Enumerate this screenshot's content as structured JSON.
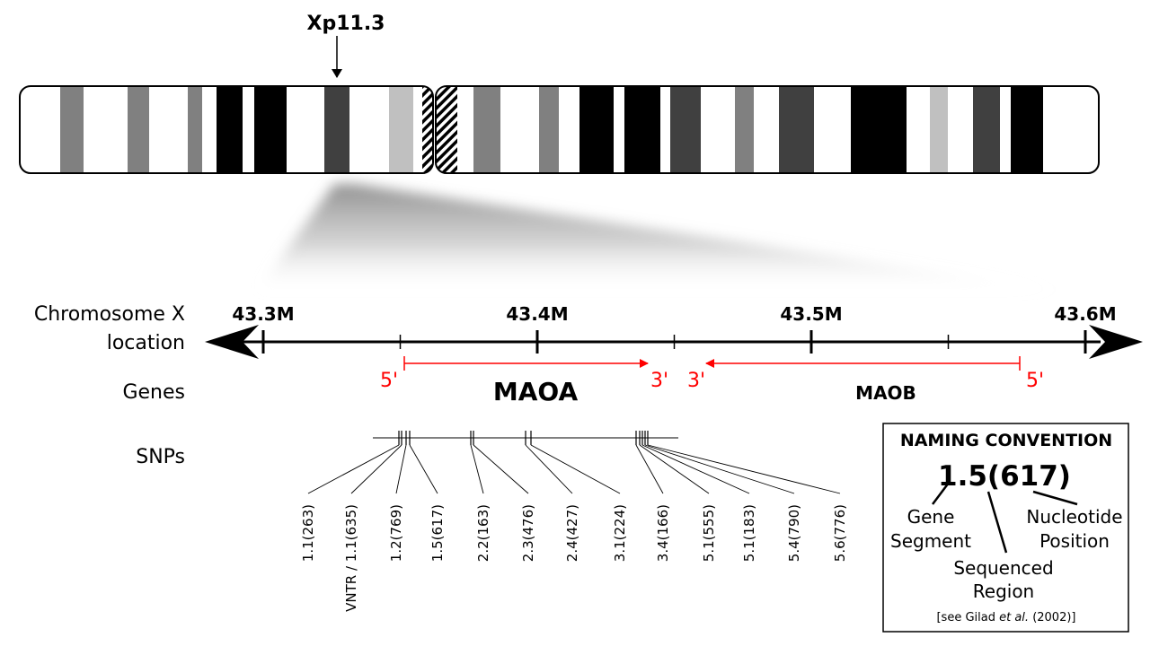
{
  "colors": {
    "red": "#ff0000",
    "black": "#000000",
    "dark_gray": "#404040",
    "mid_gray": "#808080",
    "light_gray": "#c0c0c0",
    "white": "#ffffff"
  },
  "band_label": "Xp11.3",
  "row_labels": {
    "location_line1": "Chromosome X",
    "location_line2": "location",
    "genes": "Genes",
    "snps": "SNPs"
  },
  "axis_ticks": [
    {
      "label": "43.3M",
      "value": 43.3
    },
    {
      "label": "43.4M",
      "value": 43.4
    },
    {
      "label": "43.5M",
      "value": 43.5
    },
    {
      "label": "43.6M",
      "value": 43.6
    }
  ],
  "genes": [
    {
      "name": "MAOA",
      "end_left": "5'",
      "end_right": "3'",
      "direction": "forward"
    },
    {
      "name": "MAOB",
      "end_left": "3'",
      "end_right": "5'",
      "direction": "reverse"
    }
  ],
  "snps": [
    {
      "label": "1.1(263)"
    },
    {
      "label": "VNTR / 1.1(635)"
    },
    {
      "label": "1.2(769)"
    },
    {
      "label": "1.5(617)"
    },
    {
      "label": "2.2(163)"
    },
    {
      "label": "2.3(476)"
    },
    {
      "label": "2.4(427)"
    },
    {
      "label": "3.1(224)"
    },
    {
      "label": "3.4(166)"
    },
    {
      "label": "5.1(555)"
    },
    {
      "label": "5.1(183)"
    },
    {
      "label": "5.4(790)"
    },
    {
      "label": "5.6(776)"
    }
  ],
  "naming": {
    "title": "NAMING CONVENTION",
    "example": "1.5(617)",
    "part1_line1": "Gene",
    "part1_line2": "Segment",
    "part2_line1": "Sequenced",
    "part2_line2": "Region",
    "part3_line1": "Nucleotide",
    "part3_line2": "Position",
    "ref_before": "[see Gilad ",
    "ref_em": "et al.",
    "ref_after": " (2002)]"
  }
}
